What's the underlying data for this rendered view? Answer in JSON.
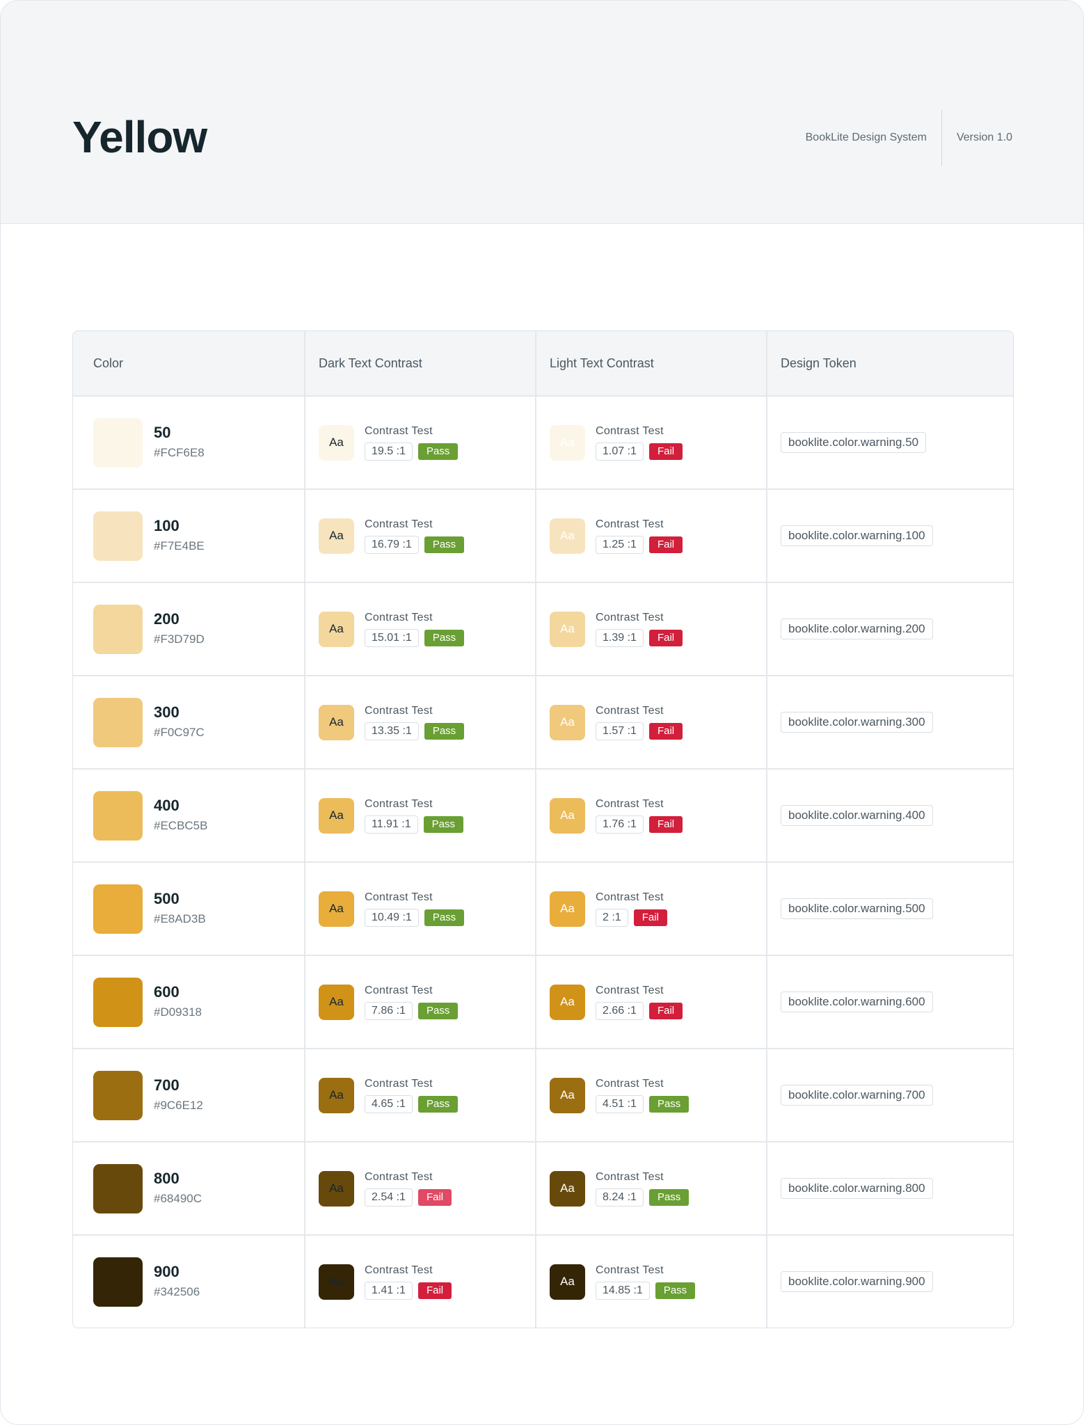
{
  "header": {
    "title": "Yellow",
    "system": "BookLite Design System",
    "version": "Version 1.0"
  },
  "table": {
    "columns": [
      "Color",
      "Dark Text Contrast",
      "Light Text Contrast",
      "Design Token"
    ],
    "test_label": "Contrast Test",
    "colors": {
      "pass": "#6a9f33",
      "fail": "#d21f3c",
      "fail_light": "#e04a64",
      "dark_text": "#17262d",
      "light_text": "#ffffff"
    },
    "rows": [
      {
        "shade": "50",
        "hex": "#FCF6E8",
        "dark": {
          "ratio": "19.5 :1",
          "result": "Pass"
        },
        "light": {
          "ratio": "1.07 :1",
          "result": "Fail"
        },
        "token": "booklite.color.warning.50"
      },
      {
        "shade": "100",
        "hex": "#F7E4BE",
        "dark": {
          "ratio": "16.79 :1",
          "result": "Pass"
        },
        "light": {
          "ratio": "1.25 :1",
          "result": "Fail"
        },
        "token": "booklite.color.warning.100"
      },
      {
        "shade": "200",
        "hex": "#F3D79D",
        "dark": {
          "ratio": "15.01 :1",
          "result": "Pass"
        },
        "light": {
          "ratio": "1.39 :1",
          "result": "Fail"
        },
        "token": "booklite.color.warning.200"
      },
      {
        "shade": "300",
        "hex": "#F0C97C",
        "dark": {
          "ratio": "13.35 :1",
          "result": "Pass"
        },
        "light": {
          "ratio": "1.57 :1",
          "result": "Fail"
        },
        "token": "booklite.color.warning.300"
      },
      {
        "shade": "400",
        "hex": "#ECBC5B",
        "dark": {
          "ratio": "11.91 :1",
          "result": "Pass"
        },
        "light": {
          "ratio": "1.76 :1",
          "result": "Fail"
        },
        "token": "booklite.color.warning.400"
      },
      {
        "shade": "500",
        "hex": "#E8AD3B",
        "dark": {
          "ratio": "10.49 :1",
          "result": "Pass"
        },
        "light": {
          "ratio": "2 :1",
          "result": "Fail"
        },
        "token": "booklite.color.warning.500"
      },
      {
        "shade": "600",
        "hex": "#D09318",
        "dark": {
          "ratio": "7.86 :1",
          "result": "Pass"
        },
        "light": {
          "ratio": "2.66 :1",
          "result": "Fail"
        },
        "token": "booklite.color.warning.600"
      },
      {
        "shade": "700",
        "hex": "#9C6E12",
        "dark": {
          "ratio": "4.65 :1",
          "result": "Pass"
        },
        "light": {
          "ratio": "4.51 :1",
          "result": "Pass"
        },
        "token": "booklite.color.warning.700"
      },
      {
        "shade": "800",
        "hex": "#68490C",
        "dark": {
          "ratio": "2.54 :1",
          "result": "Fail"
        },
        "light": {
          "ratio": "8.24 :1",
          "result": "Pass"
        },
        "token": "booklite.color.warning.800"
      },
      {
        "shade": "900",
        "hex": "#342506",
        "dark": {
          "ratio": "1.41 :1",
          "result": "Fail"
        },
        "light": {
          "ratio": "14.85 :1",
          "result": "Pass"
        },
        "token": "booklite.color.warning.900"
      }
    ]
  }
}
